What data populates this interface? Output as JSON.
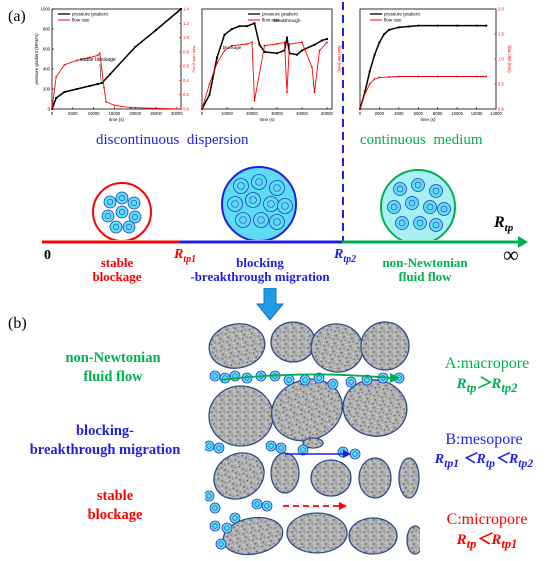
{
  "panel_a_label": "(a)",
  "panel_b_label": "(b)",
  "chart_data": [
    {
      "type": "line",
      "series": [
        {
          "name": "pressure gradient",
          "x": [
            0,
            1000,
            3000,
            6000,
            9000,
            11000,
            12000,
            14000,
            20000,
            25000,
            31000
          ],
          "y": [
            0,
            110,
            170,
            200,
            230,
            250,
            260,
            350,
            620,
            790,
            1000
          ]
        },
        {
          "name": "flow rate",
          "x": [
            0,
            1000,
            3000,
            6000,
            9000,
            11000,
            11500,
            12500,
            13000,
            15000,
            19000,
            25000,
            31000
          ],
          "y": [
            0,
            0.45,
            0.62,
            0.68,
            0.72,
            0.75,
            0.78,
            0.3,
            0.1,
            0.05,
            0.02,
            0.01,
            0.0
          ]
        }
      ],
      "annotations": [
        "stable blockage"
      ],
      "xlabel": "time (s)",
      "ylabel": "pressure gradient (MPa/m)",
      "y2label": "flow rate (m/s)",
      "x_ticks": [
        "0",
        "5000",
        "10000",
        "15000",
        "20000",
        "25000",
        "30000"
      ],
      "y_ticks": [
        "0",
        "200",
        "400",
        "600",
        "800",
        "1000"
      ],
      "y2_ticks": [
        "0.0",
        "0.2",
        "0.4",
        "0.6",
        "0.8",
        "1.0",
        "1.2",
        "1.4"
      ],
      "xlim": [
        0,
        31000
      ],
      "ylim": [
        0,
        1000
      ],
      "y2lim": [
        0,
        1.4
      ]
    },
    {
      "type": "line",
      "series": [
        {
          "name": "pressure gradient",
          "x": [
            0,
            3000,
            6000,
            9000,
            12000,
            15000,
            18000,
            21000,
            23000,
            25000,
            30000,
            33000,
            34000,
            35000,
            38000,
            40000,
            45000,
            48000,
            50000
          ],
          "y": [
            0,
            50,
            180,
            260,
            280,
            290,
            290,
            300,
            225,
            200,
            195,
            205,
            250,
            195,
            190,
            205,
            225,
            240,
            245
          ]
        },
        {
          "name": "flow rate",
          "x": [
            0,
            3000,
            6000,
            9000,
            12000,
            18000,
            20000,
            21000,
            25000,
            30000,
            33000,
            34000,
            35000,
            40000,
            44000,
            45000,
            47000,
            50000
          ],
          "y": [
            0,
            0.3,
            0.55,
            0.7,
            0.76,
            0.78,
            0.8,
            0.1,
            0.76,
            0.78,
            0.8,
            0.2,
            0.78,
            0.8,
            0.5,
            0.2,
            0.7,
            0.8
          ]
        }
      ],
      "annotations": [
        "blockage",
        "breakthrough"
      ],
      "xlabel": "time (s)",
      "ylabel": "pressure gradient (MPa/m)",
      "y2label": "flow rate (m/s)",
      "x_ticks": [
        "0",
        "10000",
        "20000",
        "30000",
        "40000",
        "50000"
      ],
      "xlim": [
        0,
        52000
      ],
      "ylim": [
        0,
        350
      ],
      "y2lim": [
        0,
        1.2
      ]
    },
    {
      "type": "line",
      "series": [
        {
          "name": "pressure gradient",
          "x": [
            0,
            500,
            1000,
            1500,
            2000,
            2500,
            3000,
            4000,
            5000,
            6000,
            8000,
            10000,
            12000,
            13000
          ],
          "y": [
            0,
            20,
            45,
            65,
            80,
            90,
            95,
            98,
            99,
            100,
            100,
            100,
            100,
            100
          ]
        },
        {
          "name": "flow rate",
          "x": [
            0,
            500,
            1000,
            1500,
            2000,
            3000,
            4000,
            6000,
            8000,
            10000,
            12000,
            13000
          ],
          "y": [
            0,
            0.3,
            0.5,
            0.6,
            0.63,
            0.64,
            0.65,
            0.65,
            0.65,
            0.65,
            0.65,
            0.65
          ]
        }
      ],
      "xlabel": "time (s)",
      "ylabel": "pressure gradient (MPa/m)",
      "y2label": "flow rate (m/s)",
      "x_ticks": [
        "0",
        "2000",
        "4000",
        "6000",
        "8000",
        "10000",
        "12000",
        "14000"
      ],
      "y2_ticks": [
        "0.0",
        "0.5",
        "1.0",
        "1.5",
        "2.0"
      ],
      "xlim": [
        0,
        14000
      ],
      "ylim": [
        0,
        120
      ],
      "y2lim": [
        0,
        2.0
      ]
    }
  ],
  "regimes": {
    "discontinuous": "discontinuous  dispersion",
    "continuous": "continuous  medium"
  },
  "axis": {
    "zero": "0",
    "infinity": "∞",
    "rtp": "R",
    "rtp_sub": "tp",
    "rtp1": "R",
    "rtp1_sub": "tp1",
    "rtp2": "R",
    "rtp2_sub": "tp2",
    "stable_line1": "stable",
    "stable_line2": "blockage",
    "blocking_line1": "blocking",
    "blocking_line2": "-breakthrough migration",
    "nonnewt_line1": "non-Newtonian",
    "nonnewt_line2": "fluid flow"
  },
  "side_labels": {
    "nonnewt_line1": "non-Newtonian",
    "nonnewt_line2": "fluid flow",
    "blocking_line1": "blocking-",
    "blocking_line2": "breakthrough migration",
    "stable_line1": "stable",
    "stable_line2": "blockage"
  },
  "pores": {
    "a_name": "A:macropore",
    "a_cond": "R<sub>tp</sub>＞R<sub>tp2</sub>",
    "b_name": "B:mesopore",
    "b_cond": "R<sub>tp1</sub> ＜R<sub>tp</sub>＜R<sub>tp2</sub>",
    "c_name": "C:micropore",
    "c_cond": "R<sub>tp</sub>＜R<sub>tp1</sub>"
  },
  "colors": {
    "green": "#00b050",
    "blue": "#1f1fe0",
    "red": "#ff0000",
    "dark_blue": "#1f3fbf",
    "cyan": "#5fdcf5",
    "light_cyan": "#a9f0f5",
    "grain": "#a6a6a6",
    "grain_edge": "#2e4b8c"
  }
}
